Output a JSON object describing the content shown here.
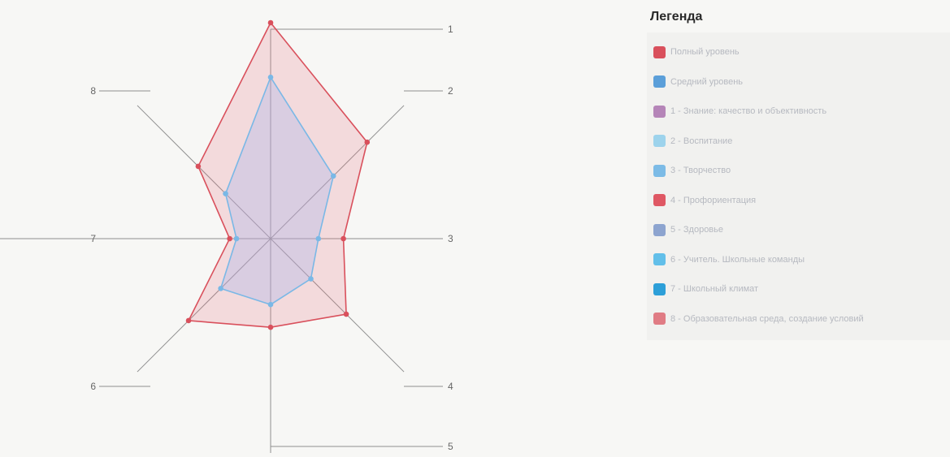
{
  "chart_data": {
    "type": "radar",
    "axes": [
      "1",
      "2",
      "3",
      "4",
      "5",
      "6",
      "7",
      "8"
    ],
    "range": [
      0,
      10
    ],
    "grid": false,
    "series": [
      {
        "name": "Полный уровень",
        "values": [
          9.5,
          6.0,
          3.2,
          4.7,
          3.9,
          5.1,
          1.8,
          4.5
        ],
        "color": "#d9505c",
        "fill": "rgba(230,120,130,0.22)"
      },
      {
        "name": "Средний уровень",
        "values": [
          7.1,
          3.9,
          2.1,
          2.5,
          2.9,
          3.1,
          1.5,
          2.8
        ],
        "color": "#7ab8e6",
        "fill": "rgba(170,180,235,0.35)"
      }
    ]
  },
  "legend": {
    "title": "Легенда",
    "items": [
      {
        "label": "Полный уровень",
        "color": "#d9505c"
      },
      {
        "label": "Средний уровень",
        "color": "#5b9fd9"
      },
      {
        "label": "1 - Знание: качество и объективность",
        "color": "#b585b8"
      },
      {
        "label": "2 - Воспитание",
        "color": "#9dd3ec"
      },
      {
        "label": "3 - Творчество",
        "color": "#7cbbe6"
      },
      {
        "label": "4 - Профориентация",
        "color": "#df5864"
      },
      {
        "label": "5 - Здоровье",
        "color": "#8da4cf"
      },
      {
        "label": "6 - Учитель. Школьные команды",
        "color": "#62bfe9"
      },
      {
        "label": "7 - Школьный климат",
        "color": "#2d9fd8"
      },
      {
        "label": "8 - Образовательная среда, создание условий",
        "color": "#e07c84"
      }
    ]
  }
}
